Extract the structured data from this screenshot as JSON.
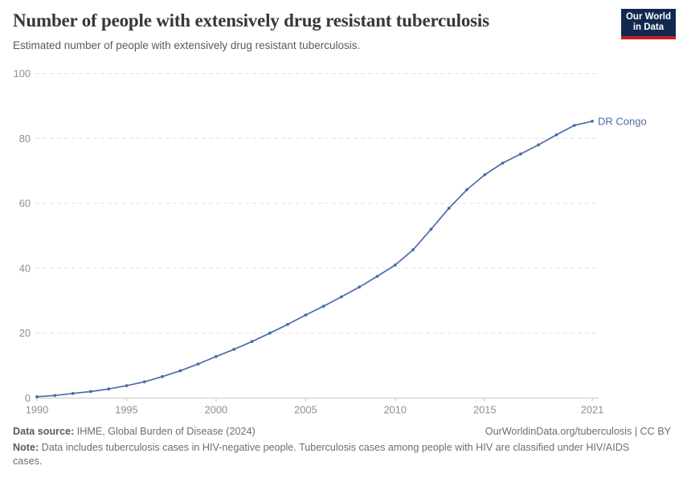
{
  "header": {
    "title": "Number of people with extensively drug resistant tuberculosis",
    "subtitle": "Estimated number of people with extensively drug resistant tuberculosis.",
    "logo": {
      "line1": "Our World",
      "line2": "in Data"
    }
  },
  "chart_data": {
    "type": "line",
    "title": "Number of people with extensively drug resistant tuberculosis",
    "subtitle": "Estimated number of people with extensively drug resistant tuberculosis.",
    "xlabel": "",
    "ylabel": "",
    "xlim": [
      1990,
      2021
    ],
    "ylim": [
      0,
      100
    ],
    "xticks": [
      1990,
      1995,
      2000,
      2005,
      2010,
      2015,
      2021
    ],
    "yticks": [
      0,
      20,
      40,
      60,
      80,
      100
    ],
    "grid": "horizontal-dashed",
    "legend_position": "line-end-label",
    "x": [
      1990,
      1991,
      1992,
      1993,
      1994,
      1995,
      1996,
      1997,
      1998,
      1999,
      2000,
      2001,
      2002,
      2003,
      2004,
      2005,
      2006,
      2007,
      2008,
      2009,
      2010,
      2011,
      2012,
      2013,
      2014,
      2015,
      2016,
      2017,
      2018,
      2019,
      2020,
      2021
    ],
    "series": [
      {
        "name": "DR Congo",
        "color": "#4C6CA8",
        "values": [
          0.4,
          0.8,
          1.4,
          2.0,
          2.8,
          3.8,
          5.0,
          6.6,
          8.4,
          10.5,
          12.8,
          15.0,
          17.4,
          20.0,
          22.7,
          25.6,
          28.3,
          31.2,
          34.2,
          37.5,
          41.0,
          45.7,
          52.0,
          58.5,
          64.2,
          68.8,
          72.4,
          75.2,
          78.0,
          81.1,
          84.0,
          85.3
        ]
      }
    ]
  },
  "footer": {
    "datasource_label": "Data source:",
    "datasource_value": " IHME, Global Burden of Disease (2024)",
    "link": "OurWorldinData.org/tuberculosis | CC BY",
    "note_label": "Note:",
    "note_value": " Data includes tuberculosis cases in HIV-negative people. Tuberculosis cases among people with HIV are classified under HIV/AIDS cases."
  },
  "colors": {
    "line": "#4C6CA8",
    "grid": "#e0e0e0",
    "axis": "#c8c8c8",
    "tick_label": "#8e8e8e",
    "title": "#383838",
    "subtitle": "#5b5b5b",
    "footer": "#6e6e6e",
    "logo_bg": "#12294F",
    "logo_stripe": "#C81E28"
  }
}
